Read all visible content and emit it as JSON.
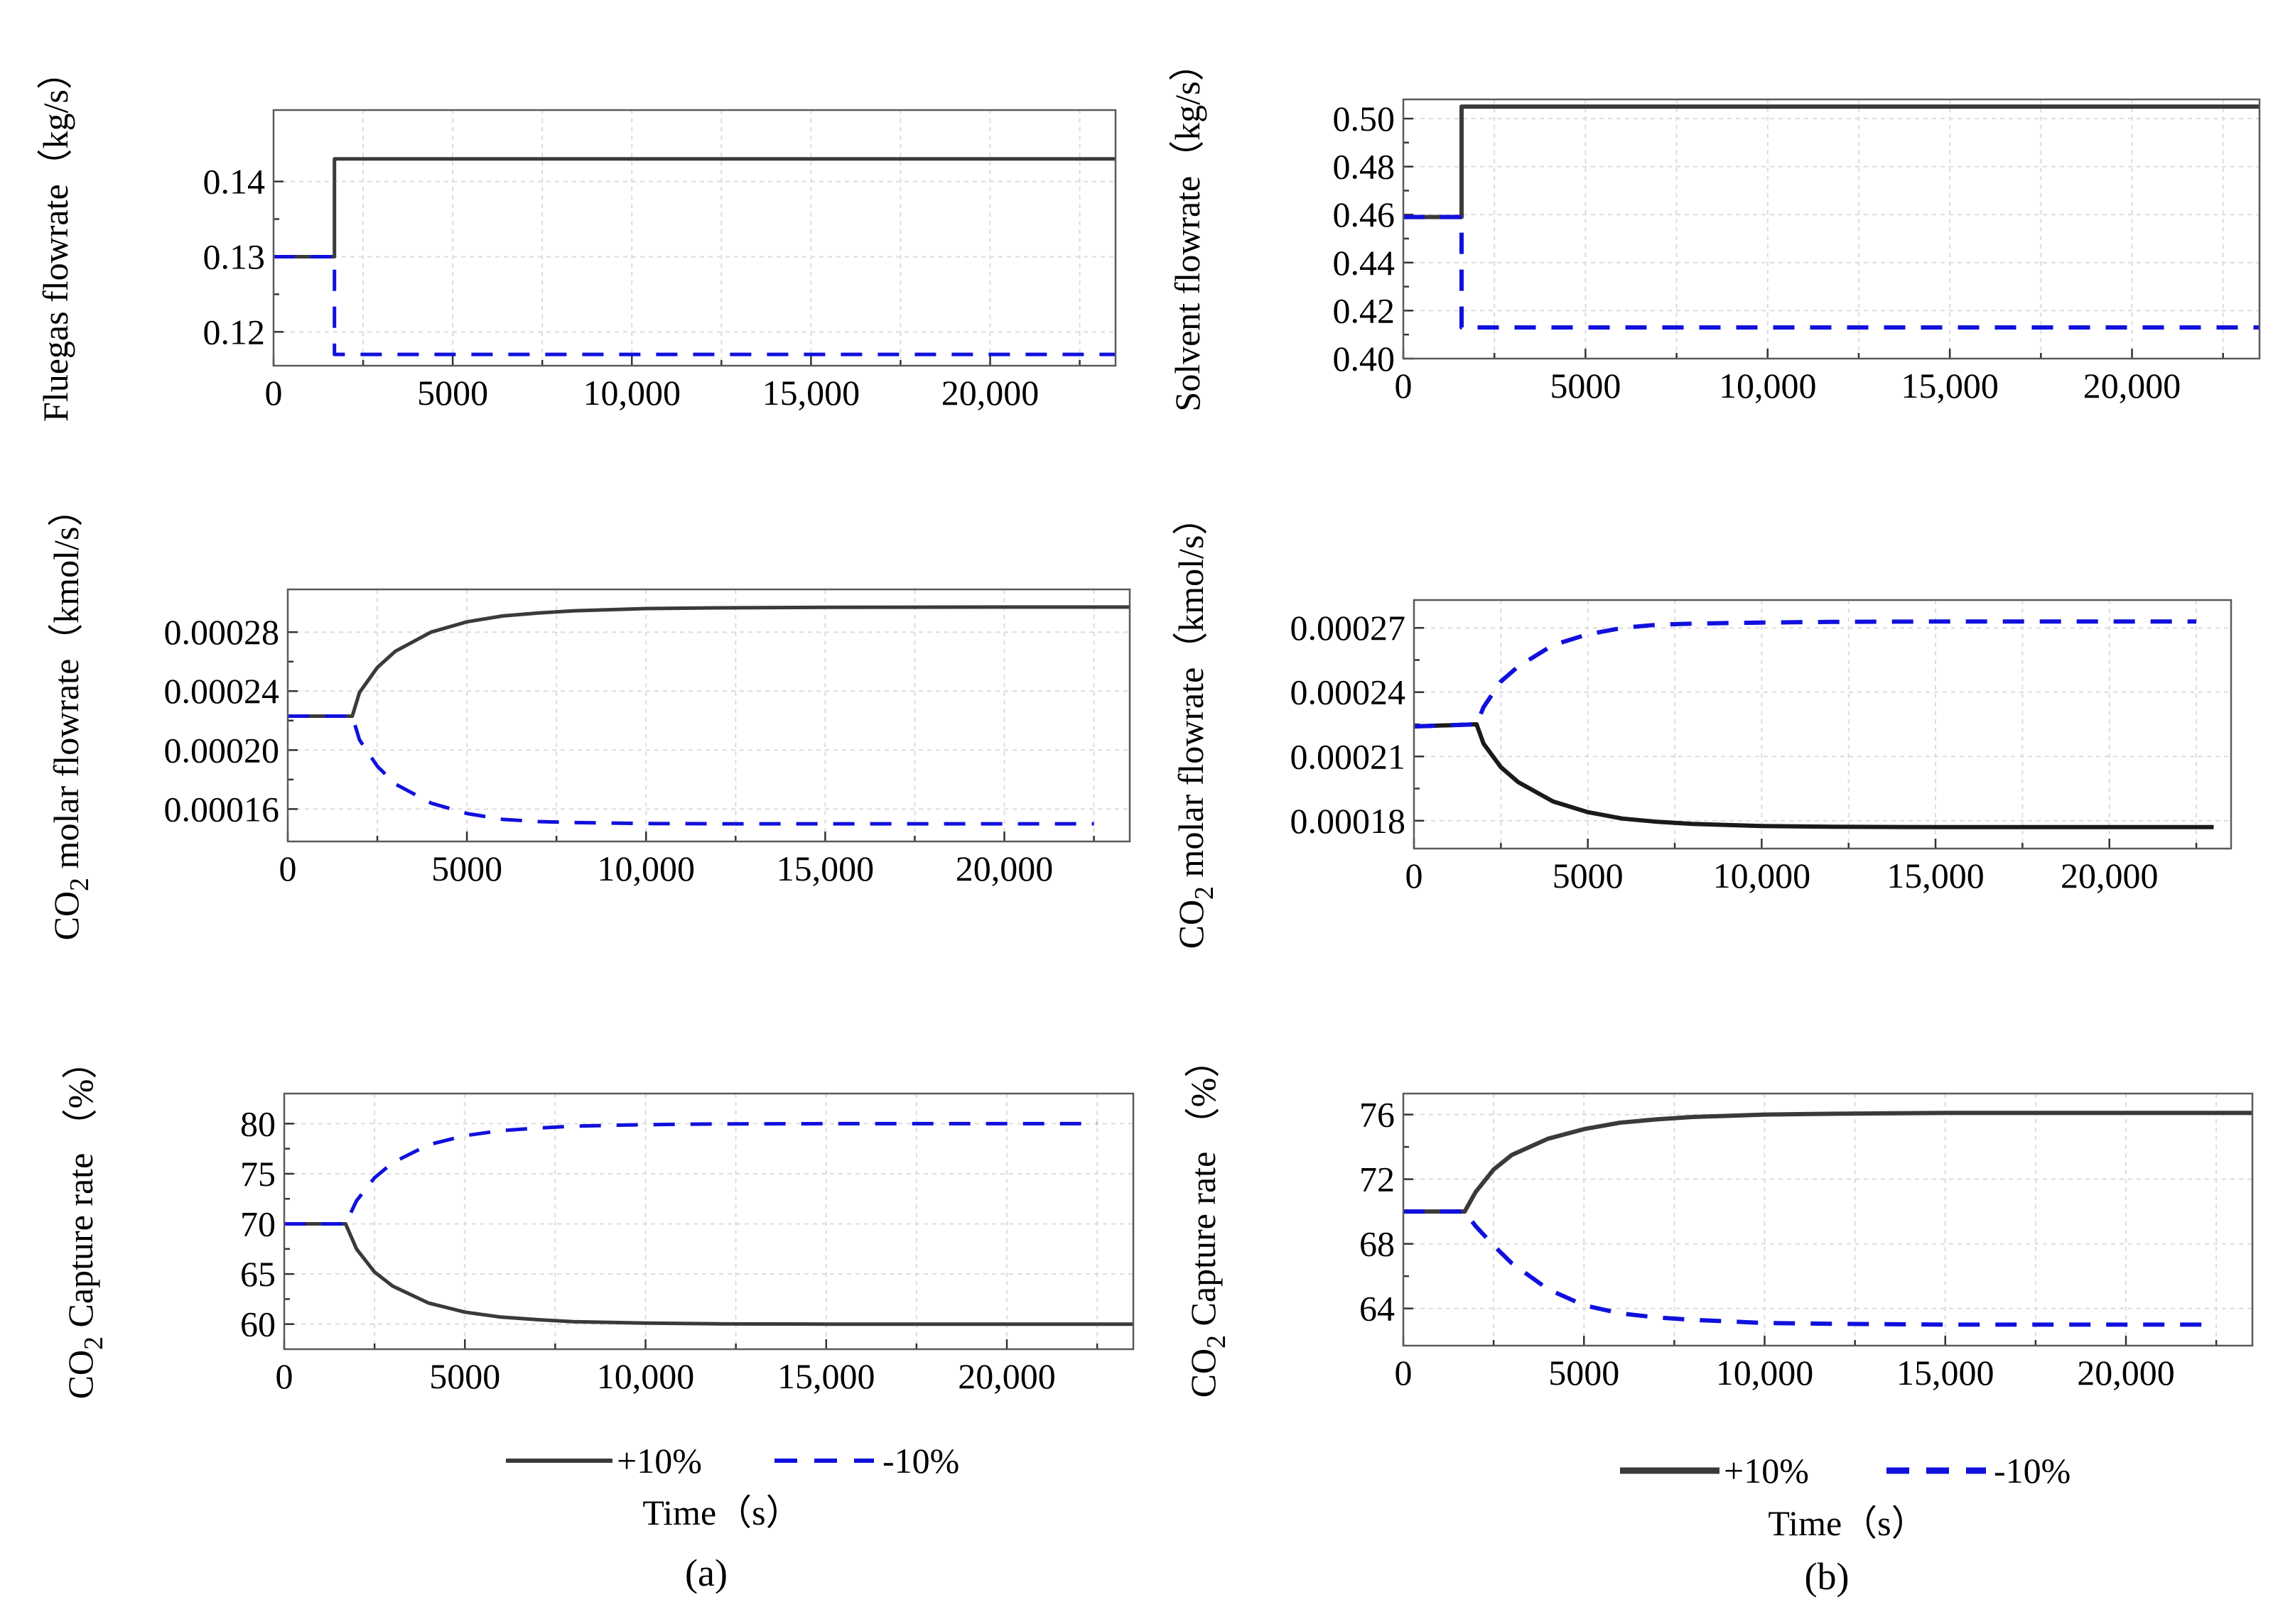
{
  "colors": {
    "plus_series": "#3a3a3a",
    "minus_series": "#1010dd",
    "frame": "#5a5a5a",
    "grid": "#dcdcdc"
  },
  "legends": {
    "a": [
      {
        "label": "+10%",
        "style": "solid",
        "color": "#3a3a3a"
      },
      {
        "label": "-10%",
        "style": "dashed",
        "color": "#1010dd"
      }
    ],
    "b": [
      {
        "label": "+10%",
        "style": "solid",
        "color": "#3a3a3a"
      },
      {
        "label": "-10%",
        "style": "dashed",
        "color": "#1010dd"
      }
    ]
  },
  "time_labels": {
    "a": "Time（s）",
    "b": "Time（s）"
  },
  "panel_labels": {
    "a": "(a)",
    "b": "(b)"
  },
  "chart_data": [
    {
      "id": "a1",
      "type": "line",
      "panel": "a",
      "title": "",
      "ylabel": "Fluegas flowrate（kg/s）",
      "xlim": [
        0,
        23500
      ],
      "ylim": [
        0.1155,
        0.1495
      ],
      "xticks": [
        0,
        5000,
        10000,
        15000,
        20000
      ],
      "xtick_labels": [
        "0",
        "5000",
        "10,000",
        "15,000",
        "20,000"
      ],
      "yticks": [
        0.12,
        0.13,
        0.14
      ],
      "ytick_labels": [
        "0.12",
        "0.13",
        "0.14"
      ],
      "grid": true,
      "series": [
        {
          "name": "+10%",
          "style": "solid",
          "color": "#3a3a3a",
          "x": [
            0,
            1700,
            1700,
            23500
          ],
          "y": [
            0.13,
            0.13,
            0.143,
            0.143
          ]
        },
        {
          "name": "-10%",
          "style": "dashed",
          "color": "#1010dd",
          "x": [
            0,
            1700,
            1700,
            23500
          ],
          "y": [
            0.13,
            0.13,
            0.117,
            0.117
          ]
        }
      ]
    },
    {
      "id": "a2",
      "type": "line",
      "panel": "a",
      "title": "",
      "ylabel": "CO2 molar flowrate（kmol/s）",
      "xlim": [
        0,
        23500
      ],
      "ylim": [
        0.000138,
        0.000309
      ],
      "xticks": [
        0,
        5000,
        10000,
        15000,
        20000
      ],
      "xtick_labels": [
        "0",
        "5000",
        "10,000",
        "15,000",
        "20,000"
      ],
      "yticks": [
        0.00016,
        0.0002,
        0.00024,
        0.00028
      ],
      "ytick_labels": [
        "0.00016",
        "0.00020",
        "0.00024",
        "0.00028"
      ],
      "grid": true,
      "series": [
        {
          "name": "+10%",
          "style": "solid",
          "color": "#3a3a3a",
          "x": [
            0,
            1800,
            2000,
            2500,
            3000,
            4000,
            5000,
            6000,
            7000,
            8000,
            10000,
            12000,
            15000,
            20000,
            23500
          ],
          "y": [
            0.000223,
            0.000223,
            0.000239,
            0.000256,
            0.000267,
            0.00028,
            0.000287,
            0.000291,
            0.000293,
            0.0002945,
            0.000296,
            0.0002965,
            0.0002968,
            0.000297,
            0.000297
          ]
        },
        {
          "name": "-10%",
          "style": "dashed",
          "color": "#1010dd",
          "x": [
            0,
            1800,
            2000,
            2500,
            3000,
            4000,
            5000,
            6000,
            7000,
            8000,
            10000,
            12000,
            15000,
            20000,
            22500
          ],
          "y": [
            0.000223,
            0.000223,
            0.000207,
            0.000189,
            0.000177,
            0.000164,
            0.000157,
            0.000153,
            0.0001515,
            0.0001508,
            0.0001502,
            0.00015,
            0.00015,
            0.00015,
            0.00015
          ]
        }
      ]
    },
    {
      "id": "a3",
      "type": "line",
      "panel": "a",
      "title": "",
      "ylabel": "CO2 Capture rate （%）",
      "xlim": [
        0,
        23500
      ],
      "ylim": [
        57.5,
        83
      ],
      "xticks": [
        0,
        5000,
        10000,
        15000,
        20000
      ],
      "xtick_labels": [
        "0",
        "5000",
        "10,000",
        "15,000",
        "20,000"
      ],
      "yticks": [
        60,
        65,
        70,
        75,
        80
      ],
      "ytick_labels": [
        "60",
        "65",
        "70",
        "75",
        "80"
      ],
      "grid": true,
      "series": [
        {
          "name": "+10%",
          "style": "solid",
          "color": "#3a3a3a",
          "x": [
            0,
            1700,
            2000,
            2500,
            3000,
            4000,
            5000,
            6000,
            7000,
            8000,
            10000,
            12000,
            15000,
            20000,
            23500
          ],
          "y": [
            70,
            70,
            67.5,
            65.2,
            63.8,
            62.1,
            61.2,
            60.7,
            60.45,
            60.25,
            60.1,
            60.03,
            60,
            60,
            60
          ]
        },
        {
          "name": "-10%",
          "style": "dashed",
          "color": "#1010dd",
          "x": [
            0,
            1700,
            2000,
            2500,
            3000,
            4000,
            5000,
            6000,
            7000,
            8000,
            10000,
            12000,
            15000,
            20000,
            22500
          ],
          "y": [
            70,
            70,
            72.3,
            74.6,
            76.1,
            77.9,
            78.8,
            79.3,
            79.55,
            79.75,
            79.9,
            79.97,
            80,
            80,
            80
          ]
        }
      ]
    },
    {
      "id": "b1",
      "type": "line",
      "panel": "b",
      "title": "",
      "ylabel": "Solvent flowrate（kg/s）",
      "xlim": [
        0,
        23500
      ],
      "ylim": [
        0.4,
        0.508
      ],
      "xticks": [
        0,
        5000,
        10000,
        15000,
        20000
      ],
      "xtick_labels": [
        "0",
        "5000",
        "10,000",
        "15,000",
        "20,000"
      ],
      "yticks": [
        0.4,
        0.42,
        0.44,
        0.46,
        0.48,
        0.5
      ],
      "ytick_labels": [
        "0.40",
        "0.42",
        "0.44",
        "0.46",
        "0.48",
        "0.50"
      ],
      "grid": true,
      "series": [
        {
          "name": "+10%",
          "style": "solid",
          "color": "#3a3a3a",
          "x": [
            0,
            1600,
            1600,
            23500
          ],
          "y": [
            0.459,
            0.459,
            0.505,
            0.505
          ]
        },
        {
          "name": "-10%",
          "style": "dashed",
          "color": "#1010dd",
          "x": [
            0,
            1600,
            1600,
            23500
          ],
          "y": [
            0.459,
            0.459,
            0.413,
            0.413
          ]
        }
      ]
    },
    {
      "id": "b2",
      "type": "line",
      "panel": "b",
      "title": "",
      "ylabel": "CO2 molar flowrate（kmol/s）",
      "xlim": [
        0,
        23500
      ],
      "ylim": [
        0.000167,
        0.000283
      ],
      "xticks": [
        0,
        5000,
        10000,
        15000,
        20000
      ],
      "xtick_labels": [
        "0",
        "5000",
        "10,000",
        "15,000",
        "20,000"
      ],
      "yticks": [
        0.00018,
        0.00021,
        0.00024,
        0.00027
      ],
      "ytick_labels": [
        "0.00018",
        "0.00021",
        "0.00024",
        "0.00027"
      ],
      "grid": true,
      "series": [
        {
          "name": "+10%",
          "style": "solid",
          "color": "#1a1a1a",
          "x": [
            0,
            1800,
            2000,
            2500,
            3000,
            4000,
            5000,
            6000,
            7000,
            8000,
            10000,
            12000,
            15000,
            20000,
            23000
          ],
          "y": [
            0.000224,
            0.000225,
            0.000216,
            0.000205,
            0.000198,
            0.000189,
            0.000184,
            0.000181,
            0.0001795,
            0.0001785,
            0.0001775,
            0.0001772,
            0.000177,
            0.000177,
            0.000177
          ]
        },
        {
          "name": "-10%",
          "style": "dashed",
          "color": "#1010dd",
          "x": [
            0,
            1800,
            2000,
            2500,
            3000,
            4000,
            5000,
            6000,
            7000,
            8000,
            10000,
            12000,
            15000,
            20000,
            22500
          ],
          "y": [
            0.000224,
            0.000225,
            0.000233,
            0.000245,
            0.000252,
            0.000262,
            0.000267,
            0.00027,
            0.0002715,
            0.000272,
            0.0002725,
            0.0002728,
            0.000273,
            0.000273,
            0.000273
          ]
        }
      ]
    },
    {
      "id": "b3",
      "type": "line",
      "panel": "b",
      "title": "",
      "ylabel": "CO2 Capture rate （%）",
      "xlim": [
        0,
        23500
      ],
      "ylim": [
        61.7,
        77.3
      ],
      "xticks": [
        0,
        5000,
        10000,
        15000,
        20000
      ],
      "xtick_labels": [
        "0",
        "5000",
        "10,000",
        "15,000",
        "20,000"
      ],
      "yticks": [
        64,
        68,
        72,
        76
      ],
      "ytick_labels": [
        "64",
        "68",
        "72",
        "76"
      ],
      "grid": true,
      "series": [
        {
          "name": "+10%",
          "style": "solid",
          "color": "#3a3a3a",
          "x": [
            0,
            1700,
            2000,
            2500,
            3000,
            4000,
            5000,
            6000,
            7000,
            8000,
            10000,
            12000,
            15000,
            20000,
            23500
          ],
          "y": [
            70,
            70,
            71.2,
            72.6,
            73.5,
            74.5,
            75.1,
            75.5,
            75.7,
            75.85,
            76,
            76.05,
            76.1,
            76.1,
            76.1
          ]
        },
        {
          "name": "-10%",
          "style": "dashed",
          "color": "#1010dd",
          "x": [
            0,
            1700,
            2000,
            2500,
            3000,
            4000,
            5000,
            6000,
            7000,
            8000,
            10000,
            12000,
            15000,
            20000,
            22500
          ],
          "y": [
            70,
            70,
            69.1,
            67.9,
            66.8,
            65.2,
            64.2,
            63.7,
            63.45,
            63.3,
            63.1,
            63.05,
            63,
            63,
            63
          ]
        }
      ]
    }
  ]
}
